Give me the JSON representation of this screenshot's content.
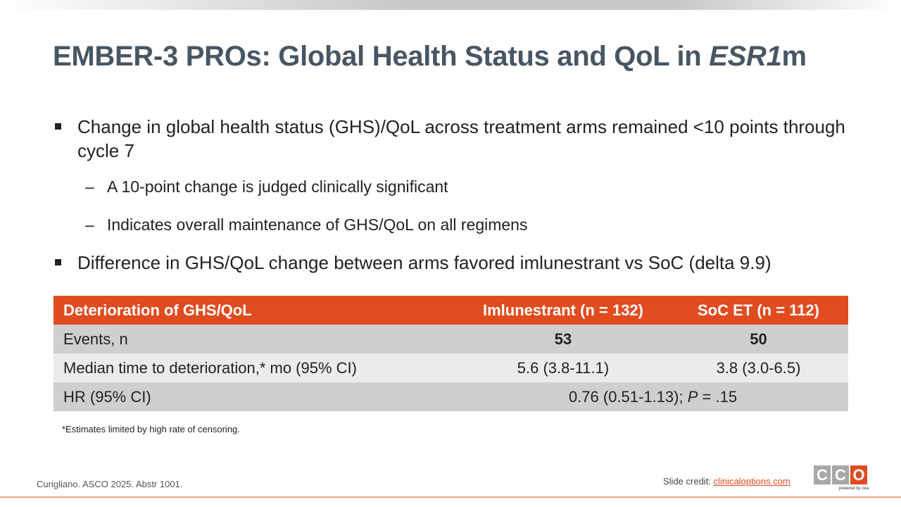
{
  "slide": {
    "title_main": "EMBER-3 PROs: Global Health Status and QoL in ",
    "title_italic": "ESR1",
    "title_suffix": "m"
  },
  "bullets": {
    "b1": "Change in global health status (GHS)/QoL across treatment arms remained <10 points through cycle 7",
    "b1_sub1": "A 10-point change is judged clinically significant",
    "b1_sub2": "Indicates overall maintenance of GHS/QoL on all regimens",
    "b2": "Difference in GHS/QoL change between arms favored imlunestrant vs SoC (delta 9.9)",
    "dash": "–"
  },
  "table": {
    "headers": [
      "Deterioration of GHS/QoL",
      "Imlunestrant (n = 132)",
      "SoC ET (n = 112)"
    ],
    "rows": [
      {
        "label": "Events, n",
        "col1": "53",
        "col2": "50"
      },
      {
        "label": "Median time to deterioration,* mo (95% CI)",
        "col1": "5.6 (3.8-11.1)",
        "col2": "3.8 (3.0-6.5)"
      },
      {
        "label": "HR (95% CI)",
        "hr_value": "0.76 (0.51-1.13); ",
        "p_label": "P",
        "p_value": " = .15"
      }
    ]
  },
  "footnote": "*Estimates limited by high rate of censoring.",
  "citation": "Curigliano. ASCO 2025. Abstr 1001.",
  "credit": {
    "label": "Slide credit: ",
    "link": "clinicaloptions.com"
  },
  "logo": {
    "letters": [
      "C",
      "C",
      "O"
    ],
    "colors": [
      "#a8a8a8",
      "#a8a8a8",
      "#e04c1f"
    ],
    "powered": "powered by cea"
  }
}
